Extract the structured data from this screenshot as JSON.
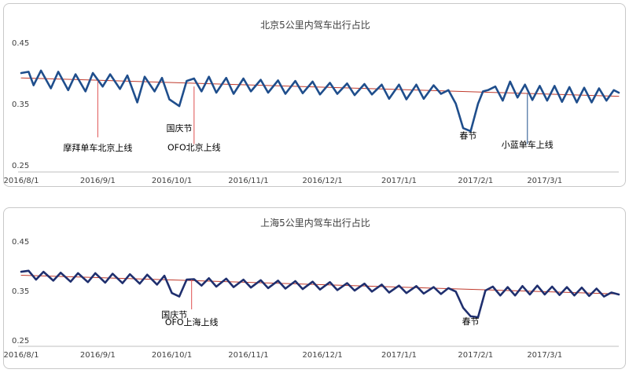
{
  "chart_data": [
    {
      "type": "line",
      "title": "北京5公里内驾车出行占比",
      "xlabel": "",
      "ylabel": "",
      "x_start": "2016-08-01",
      "x_end": "2017-03-31",
      "x_ticks": [
        {
          "date": "2016-08-01",
          "label": "2016/8/1"
        },
        {
          "date": "2016-09-01",
          "label": "2016/9/1"
        },
        {
          "date": "2016-10-01",
          "label": "2016/10/1"
        },
        {
          "date": "2016-11-01",
          "label": "2016/11/1"
        },
        {
          "date": "2016-12-01",
          "label": "2016/12/1"
        },
        {
          "date": "2017-01-01",
          "label": "2017/1/1"
        },
        {
          "date": "2017-02-01",
          "label": "2017/2/1"
        },
        {
          "date": "2017-03-01",
          "label": "2017/3/1"
        }
      ],
      "y_ticks": [
        0.25,
        0.35,
        0.45
      ],
      "y_tick_labels": [
        "0.25",
        "0.35",
        "0.45"
      ],
      "ylim": [
        0.25,
        0.45
      ],
      "grid": false,
      "series": [
        {
          "color": "#1f4e8c",
          "x": [
            "2016-08-01",
            "2016-08-04",
            "2016-08-06",
            "2016-08-09",
            "2016-08-13",
            "2016-08-16",
            "2016-08-20",
            "2016-08-23",
            "2016-08-27",
            "2016-08-30",
            "2016-09-03",
            "2016-09-06",
            "2016-09-10",
            "2016-09-13",
            "2016-09-17",
            "2016-09-20",
            "2016-09-24",
            "2016-09-27",
            "2016-09-30",
            "2016-10-04",
            "2016-10-07",
            "2016-10-10",
            "2016-10-13",
            "2016-10-16",
            "2016-10-19",
            "2016-10-23",
            "2016-10-26",
            "2016-10-30",
            "2016-11-02",
            "2016-11-06",
            "2016-11-09",
            "2016-11-13",
            "2016-11-16",
            "2016-11-20",
            "2016-11-23",
            "2016-11-27",
            "2016-11-30",
            "2016-12-04",
            "2016-12-07",
            "2016-12-11",
            "2016-12-14",
            "2016-12-18",
            "2016-12-21",
            "2016-12-25",
            "2016-12-28",
            "2017-01-01",
            "2017-01-04",
            "2017-01-08",
            "2017-01-11",
            "2017-01-15",
            "2017-01-18",
            "2017-01-21",
            "2017-01-24",
            "2017-01-27",
            "2017-01-30",
            "2017-02-02",
            "2017-02-04",
            "2017-02-06",
            "2017-02-09",
            "2017-02-12",
            "2017-02-15",
            "2017-02-18",
            "2017-02-21",
            "2017-02-24",
            "2017-02-27",
            "2017-03-02",
            "2017-03-05",
            "2017-03-08",
            "2017-03-11",
            "2017-03-14",
            "2017-03-17",
            "2017-03-20",
            "2017-03-23",
            "2017-03-26",
            "2017-03-29",
            "2017-03-31"
          ],
          "values": [
            0.4,
            0.402,
            0.38,
            0.404,
            0.375,
            0.402,
            0.372,
            0.398,
            0.37,
            0.4,
            0.378,
            0.398,
            0.374,
            0.396,
            0.352,
            0.394,
            0.37,
            0.392,
            0.357,
            0.346,
            0.387,
            0.391,
            0.37,
            0.394,
            0.368,
            0.392,
            0.366,
            0.391,
            0.37,
            0.389,
            0.368,
            0.388,
            0.366,
            0.387,
            0.367,
            0.386,
            0.365,
            0.384,
            0.366,
            0.383,
            0.364,
            0.382,
            0.365,
            0.381,
            0.358,
            0.381,
            0.357,
            0.381,
            0.358,
            0.38,
            0.366,
            0.372,
            0.35,
            0.31,
            0.305,
            0.35,
            0.37,
            0.372,
            0.378,
            0.355,
            0.386,
            0.36,
            0.381,
            0.356,
            0.379,
            0.355,
            0.379,
            0.353,
            0.377,
            0.352,
            0.376,
            0.352,
            0.375,
            0.355,
            0.372,
            0.368
          ]
        },
        {
          "color": "#c0392b",
          "x": [
            "2016-08-01",
            "2017-03-31"
          ],
          "values": [
            0.392,
            0.362
          ]
        }
      ],
      "annotations": [
        {
          "text": "摩拜单车北京上线",
          "date": "2016-09-01",
          "color": "#000000",
          "line_color": "#e05050",
          "line_from": 0.387,
          "line_to": 0.295,
          "label_y": 0.273
        },
        {
          "text": "国庆节",
          "date": "2016-10-04",
          "color": "#000000",
          "line_color": "#e05050",
          "line_from": null,
          "line_to": null,
          "label_y": 0.305
        },
        {
          "text": "OFO北京上线",
          "date": "2016-10-10",
          "color": "#000000",
          "line_color": "#e05050",
          "line_from": 0.378,
          "line_to": 0.284,
          "label_y": 0.274
        },
        {
          "text": "春节",
          "date": "2017-01-29",
          "color": "#000000",
          "line_color": "",
          "line_from": null,
          "line_to": null,
          "label_y": 0.293
        },
        {
          "text": "小蓝单车上线",
          "date": "2017-02-22",
          "color": "#8b1a1a",
          "line_color": "#1f4e8c",
          "line_from": 0.366,
          "line_to": 0.284,
          "label_y": 0.278
        }
      ]
    },
    {
      "type": "line",
      "title": "上海5公里内驾车出行占比",
      "xlabel": "",
      "ylabel": "",
      "x_start": "2016-08-01",
      "x_end": "2017-03-31",
      "x_ticks": [
        {
          "date": "2016-08-01",
          "label": "2016/8/1"
        },
        {
          "date": "2016-09-01",
          "label": "2016/9/1"
        },
        {
          "date": "2016-10-01",
          "label": "2016/10/1"
        },
        {
          "date": "2016-11-01",
          "label": "2016/11/1"
        },
        {
          "date": "2016-12-01",
          "label": "2016/12/1"
        },
        {
          "date": "2017-01-01",
          "label": "2017/1/1"
        },
        {
          "date": "2017-02-01",
          "label": "2017/2/1"
        },
        {
          "date": "2017-03-01",
          "label": "2017/3/1"
        }
      ],
      "y_ticks": [
        0.25,
        0.35,
        0.45
      ],
      "y_tick_labels": [
        "0.25",
        "0.35",
        "0.45"
      ],
      "ylim": [
        0.25,
        0.45
      ],
      "grid": false,
      "series": [
        {
          "color": "#1f2f6e",
          "x": [
            "2016-08-01",
            "2016-08-04",
            "2016-08-07",
            "2016-08-10",
            "2016-08-14",
            "2016-08-17",
            "2016-08-21",
            "2016-08-24",
            "2016-08-28",
            "2016-08-31",
            "2016-09-04",
            "2016-09-07",
            "2016-09-11",
            "2016-09-14",
            "2016-09-18",
            "2016-09-21",
            "2016-09-25",
            "2016-09-28",
            "2016-10-01",
            "2016-10-04",
            "2016-10-07",
            "2016-10-10",
            "2016-10-13",
            "2016-10-16",
            "2016-10-19",
            "2016-10-23",
            "2016-10-26",
            "2016-10-30",
            "2016-11-02",
            "2016-11-06",
            "2016-11-09",
            "2016-11-13",
            "2016-11-16",
            "2016-11-20",
            "2016-11-23",
            "2016-11-27",
            "2016-11-30",
            "2016-12-04",
            "2016-12-07",
            "2016-12-11",
            "2016-12-14",
            "2016-12-18",
            "2016-12-21",
            "2016-12-25",
            "2016-12-28",
            "2017-01-01",
            "2017-01-04",
            "2017-01-08",
            "2017-01-11",
            "2017-01-15",
            "2017-01-18",
            "2017-01-21",
            "2017-01-24",
            "2017-01-27",
            "2017-01-30",
            "2017-02-02",
            "2017-02-05",
            "2017-02-08",
            "2017-02-11",
            "2017-02-14",
            "2017-02-17",
            "2017-02-20",
            "2017-02-23",
            "2017-02-26",
            "2017-03-01",
            "2017-03-04",
            "2017-03-07",
            "2017-03-10",
            "2017-03-13",
            "2017-03-16",
            "2017-03-19",
            "2017-03-22",
            "2017-03-25",
            "2017-03-28",
            "2017-03-31"
          ],
          "values": [
            0.388,
            0.39,
            0.372,
            0.388,
            0.37,
            0.386,
            0.368,
            0.385,
            0.367,
            0.385,
            0.366,
            0.384,
            0.365,
            0.383,
            0.364,
            0.382,
            0.362,
            0.38,
            0.345,
            0.338,
            0.372,
            0.373,
            0.36,
            0.375,
            0.358,
            0.374,
            0.357,
            0.372,
            0.356,
            0.371,
            0.355,
            0.37,
            0.354,
            0.369,
            0.353,
            0.368,
            0.352,
            0.367,
            0.351,
            0.365,
            0.35,
            0.364,
            0.348,
            0.362,
            0.346,
            0.36,
            0.345,
            0.359,
            0.344,
            0.357,
            0.343,
            0.355,
            0.348,
            0.315,
            0.298,
            0.296,
            0.35,
            0.358,
            0.34,
            0.357,
            0.34,
            0.359,
            0.342,
            0.36,
            0.342,
            0.358,
            0.341,
            0.357,
            0.34,
            0.356,
            0.339,
            0.354,
            0.338,
            0.346,
            0.342
          ]
        },
        {
          "color": "#c0392b",
          "x": [
            "2016-08-01",
            "2017-03-31"
          ],
          "values": [
            0.381,
            0.343
          ]
        }
      ],
      "annotations": [
        {
          "text": "国庆节",
          "date": "2016-10-02",
          "color": "#000000",
          "line_color": "",
          "line_from": null,
          "line_to": null,
          "label_y": 0.295
        },
        {
          "text": "OFO上海上线",
          "date": "2016-10-09",
          "color": "#000000",
          "line_color": "#e05050",
          "line_from": 0.372,
          "line_to": 0.312,
          "label_y": 0.28
        },
        {
          "text": "春节",
          "date": "2017-01-30",
          "color": "#000000",
          "line_color": "",
          "line_from": null,
          "line_to": null,
          "label_y": 0.282
        }
      ]
    }
  ]
}
